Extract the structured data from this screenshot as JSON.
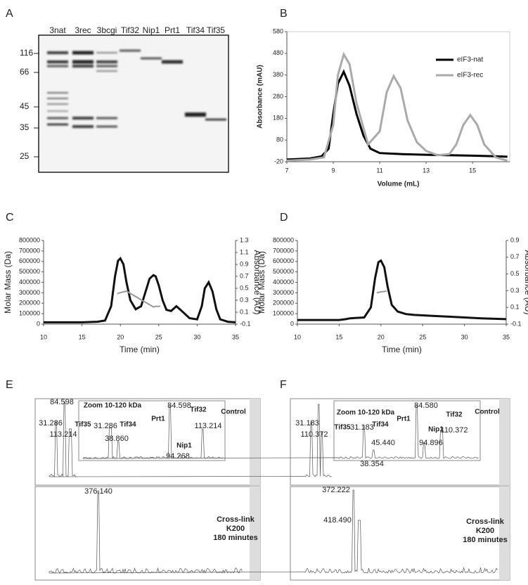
{
  "panel_labels": [
    "A",
    "B",
    "C",
    "D",
    "E",
    "F"
  ],
  "gel": {
    "lanes": [
      "3nat",
      "3rec",
      "3bcgi",
      "Tif32",
      "Nip1",
      "Prt1",
      "Tif34",
      "Tif35"
    ],
    "markers": [
      116,
      66,
      45,
      35,
      25
    ]
  },
  "chart_data": [
    {
      "type": "line",
      "xlim": [
        7,
        16.6
      ],
      "xticks": [
        7,
        9,
        11,
        13,
        15
      ],
      "ylim": [
        -20,
        580
      ],
      "yticks": [
        -20,
        80,
        180,
        280,
        380,
        480,
        580
      ],
      "x_label": "Volume (mL)",
      "y_label": "Absorbance (mAU)",
      "legend": "upper right",
      "series": [
        {
          "name": "eIF3-nat",
          "color": "#000000",
          "x": [
            7,
            8,
            8.5,
            8.8,
            9,
            9.2,
            9.45,
            9.7,
            10,
            10.3,
            10.6,
            11,
            12,
            13,
            14,
            15,
            16,
            16.5
          ],
          "values": [
            -10,
            -5,
            5,
            40,
            200,
            340,
            395,
            330,
            200,
            100,
            40,
            20,
            15,
            12,
            10,
            8,
            5,
            3
          ]
        },
        {
          "name": "eIF3-rec",
          "color": "#aaaaaa",
          "x": [
            7,
            8,
            8.6,
            9,
            9.2,
            9.45,
            9.7,
            10,
            10.5,
            11,
            11.3,
            11.6,
            11.9,
            12.2,
            12.6,
            13,
            13.5,
            14,
            14.3,
            14.6,
            14.9,
            15.2,
            15.5,
            16,
            16.5
          ],
          "values": [
            -15,
            -10,
            0,
            150,
            380,
            475,
            430,
            250,
            60,
            120,
            300,
            375,
            320,
            170,
            70,
            30,
            10,
            15,
            60,
            150,
            195,
            150,
            60,
            0,
            -15
          ]
        }
      ]
    },
    {
      "type": "line",
      "xlim": [
        10,
        35
      ],
      "xticks": [
        10,
        15,
        20,
        25,
        30,
        35
      ],
      "ylim": [
        0,
        800000
      ],
      "yticks": [
        0,
        100000,
        200000,
        300000,
        400000,
        500000,
        600000,
        700000,
        800000
      ],
      "y2lim": [
        -0.1,
        1.3
      ],
      "y2ticks": [
        -0.1,
        0.1,
        0.3,
        0.5,
        0.7,
        0.9,
        1.1,
        1.3
      ],
      "x_label": "Time (min)",
      "y_label": "Molar Mass (Da)",
      "y2_label": "Absorbance (AU)",
      "series": [
        {
          "color": "#111111",
          "axis": "y2",
          "x": [
            10,
            15,
            17,
            18,
            18.8,
            19.3,
            19.7,
            20,
            20.4,
            20.8,
            21.3,
            22,
            22.7,
            23.3,
            23.8,
            24.3,
            24.6,
            25,
            25.5,
            26,
            26.6,
            27.3,
            28,
            29,
            30,
            30.6,
            31,
            31.5,
            32,
            32.5,
            33,
            34,
            35
          ],
          "values": [
            -0.07,
            -0.07,
            -0.06,
            -0.04,
            0.2,
            0.7,
            0.96,
            1.0,
            0.9,
            0.6,
            0.3,
            0.15,
            0.2,
            0.45,
            0.66,
            0.72,
            0.7,
            0.55,
            0.3,
            0.14,
            0.12,
            0.2,
            0.12,
            0.0,
            -0.02,
            0.2,
            0.5,
            0.6,
            0.45,
            0.15,
            -0.02,
            -0.06,
            -0.07
          ]
        },
        {
          "color": "#999999",
          "x": [
            19.6,
            19.9,
            20.2,
            20.5,
            20.8,
            24.3,
            24.6,
            24.9,
            25.2
          ],
          "values": [
            290000,
            300000,
            305000,
            310000,
            315000,
            165000,
            170000,
            170000,
            172000
          ]
        }
      ]
    },
    {
      "type": "line",
      "xlim": [
        10,
        35
      ],
      "xticks": [
        10,
        15,
        20,
        25,
        30,
        35
      ],
      "ylim": [
        0,
        800000
      ],
      "yticks": [
        0,
        100000,
        200000,
        300000,
        400000,
        500000,
        600000,
        700000,
        800000
      ],
      "y2lim": [
        -0.1,
        0.9
      ],
      "y2ticks": [
        -0.1,
        0.1,
        0.3,
        0.5,
        0.7,
        0.9
      ],
      "x_label": "Time (min)",
      "y_label": "Molar Mass (Da)",
      "y2_label": "Absorbance (AU)",
      "series": [
        {
          "color": "#111111",
          "axis": "y2",
          "x": [
            10,
            15,
            15.8,
            16.3,
            18,
            18.8,
            19.3,
            19.7,
            20,
            20.4,
            20.8,
            21.3,
            22,
            23,
            24,
            26,
            28,
            30,
            32,
            35
          ],
          "values": [
            -0.05,
            -0.05,
            -0.04,
            -0.03,
            -0.02,
            0.1,
            0.45,
            0.64,
            0.66,
            0.58,
            0.35,
            0.13,
            0.05,
            0.02,
            0.01,
            0.0,
            -0.01,
            -0.02,
            -0.03,
            -0.04
          ]
        },
        {
          "color": "#999999",
          "x": [
            19.5,
            19.8,
            20.1,
            20.4,
            20.7
          ],
          "values": [
            300000,
            305000,
            310000,
            312000,
            318000
          ]
        }
      ]
    }
  ],
  "mass_spec": [
    {
      "top": [
        "84.598",
        "31.286",
        "113.214",
        "Zoom 10-120 kDa",
        "Control",
        "Tif35",
        "31.286",
        "Tif34",
        "38.860",
        "Prt1",
        "84.598",
        "Tif32",
        "113.214",
        "Nip1",
        "94.268"
      ],
      "bottom": [
        "376.140",
        "Cross-link",
        "K200",
        "180 minutes"
      ]
    },
    {
      "top": [
        "31.183",
        "110.372",
        "Zoom 10-120 kDa",
        "Control",
        "Tif35",
        "31.183",
        "Tif34",
        "45.440",
        "38.354",
        "Prt1",
        "84.580",
        "Nip1",
        "94.896",
        "Tif32",
        "110.372"
      ],
      "bottom": [
        "372.222",
        "418.490",
        "Cross-link",
        "K200",
        "180 minutes"
      ]
    }
  ]
}
